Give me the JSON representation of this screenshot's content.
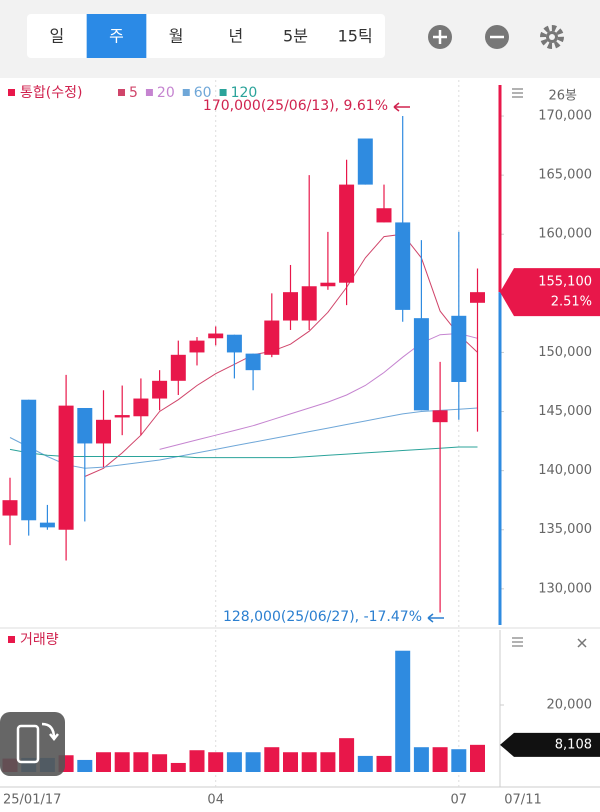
{
  "ui": {
    "tabs": [
      "일",
      "주",
      "월",
      "년",
      "5분",
      "15틱"
    ],
    "selected_tab": 1
  },
  "chart_data": [
    {
      "type": "candlestick",
      "legend_title": "통합(수정)",
      "count_label": "26봉",
      "categories": [
        "25/01/17",
        null,
        null,
        null,
        null,
        null,
        null,
        null,
        null,
        null,
        null,
        "04",
        null,
        null,
        null,
        null,
        null,
        null,
        null,
        null,
        null,
        null,
        null,
        null,
        "07",
        null
      ],
      "last_date_label": "07/11",
      "open": [
        136200,
        146000,
        135600,
        135000,
        145300,
        142300,
        144500,
        144600,
        146100,
        147600,
        150000,
        151200,
        151500,
        149900,
        149800,
        152700,
        152700,
        155600,
        155900,
        168100,
        161000,
        161000,
        152900,
        144100,
        153100,
        154200
      ],
      "high": [
        139400,
        146000,
        137100,
        148100,
        145300,
        146800,
        147200,
        147800,
        148500,
        151000,
        151300,
        152200,
        151500,
        149900,
        155000,
        157400,
        165000,
        160200,
        166300,
        168100,
        164200,
        170000,
        159500,
        149200,
        160200,
        157100
      ],
      "low": [
        133700,
        134500,
        135000,
        132400,
        135700,
        140300,
        143000,
        143000,
        145100,
        146400,
        148900,
        150600,
        147800,
        146800,
        149600,
        151900,
        151900,
        155300,
        154000,
        164200,
        161000,
        152600,
        145100,
        128000,
        144300,
        143300
      ],
      "close": [
        137500,
        135800,
        135200,
        145500,
        142300,
        144300,
        144700,
        146100,
        147600,
        149800,
        151000,
        151600,
        150000,
        148500,
        152700,
        155100,
        155600,
        155900,
        164200,
        164200,
        162200,
        153600,
        145100,
        145100,
        147500,
        155100
      ],
      "up_color": "#e8174a",
      "down_color": "#2f8be0",
      "moving_averages": [
        {
          "name": "5",
          "color": "#d0456a",
          "values": [
            null,
            null,
            null,
            null,
            139500,
            140200,
            141500,
            143000,
            145000,
            146000,
            147200,
            148200,
            149000,
            149800,
            150100,
            150700,
            151800,
            153400,
            155500,
            158000,
            159800,
            160000,
            158000,
            153500,
            151500,
            150000
          ]
        },
        {
          "name": "20",
          "color": "#c584d0",
          "values": [
            null,
            null,
            null,
            null,
            null,
            null,
            null,
            null,
            141800,
            142200,
            142600,
            143000,
            143400,
            143800,
            144300,
            144800,
            145300,
            145800,
            146400,
            147200,
            148300,
            149600,
            150800,
            151500,
            151600,
            151200
          ]
        },
        {
          "name": "60",
          "color": "#6fa7d8",
          "values": [
            142800,
            142000,
            141200,
            140500,
            140200,
            140300,
            140500,
            140700,
            140900,
            141200,
            141500,
            141800,
            142100,
            142400,
            142700,
            143000,
            143300,
            143600,
            143900,
            144200,
            144500,
            144800,
            145000,
            145100,
            145200,
            145300
          ]
        },
        {
          "name": "120",
          "color": "#2ba39a",
          "values": [
            141800,
            141500,
            141300,
            141200,
            141200,
            141200,
            141200,
            141200,
            141200,
            141200,
            141100,
            141100,
            141100,
            141100,
            141100,
            141100,
            141200,
            141300,
            141400,
            141500,
            141600,
            141700,
            141800,
            141900,
            142000,
            142000
          ]
        }
      ],
      "annotations": [
        {
          "text": "170,000(25/06/13), 9.61%",
          "color": "#d0234f"
        },
        {
          "text": "128,000(25/06/27), -17.47%",
          "color": "#2b7fd0"
        }
      ],
      "last_price_label": "155,100",
      "last_change_label": "2.51%",
      "ylim": [
        126940,
        173050
      ],
      "yticks": [
        {
          "value": 130000,
          "label": "130,000"
        },
        {
          "value": 135000,
          "label": "135,000"
        },
        {
          "value": 140000,
          "label": "140,000"
        },
        {
          "value": 145000,
          "label": "145,000"
        },
        {
          "value": 150000,
          "label": "150,000"
        },
        {
          "value": 155000,
          "label": "155,000"
        },
        {
          "value": 160000,
          "label": "160,000"
        },
        {
          "value": 165000,
          "label": "165,000"
        },
        {
          "value": 170000,
          "label": "170,000"
        }
      ]
    },
    {
      "type": "bar",
      "title": "거래량",
      "values": [
        4000,
        4200,
        4200,
        5000,
        3600,
        5900,
        5900,
        5900,
        5300,
        2700,
        6500,
        5900,
        5900,
        5900,
        7400,
        5900,
        5900,
        5900,
        10100,
        4800,
        4800,
        36200,
        7400,
        7400,
        6800,
        8108
      ],
      "last_value_label": "8,108",
      "ylim": [
        0,
        39400
      ],
      "yticks": [
        {
          "value": 20000,
          "label": "20,000"
        }
      ]
    }
  ]
}
